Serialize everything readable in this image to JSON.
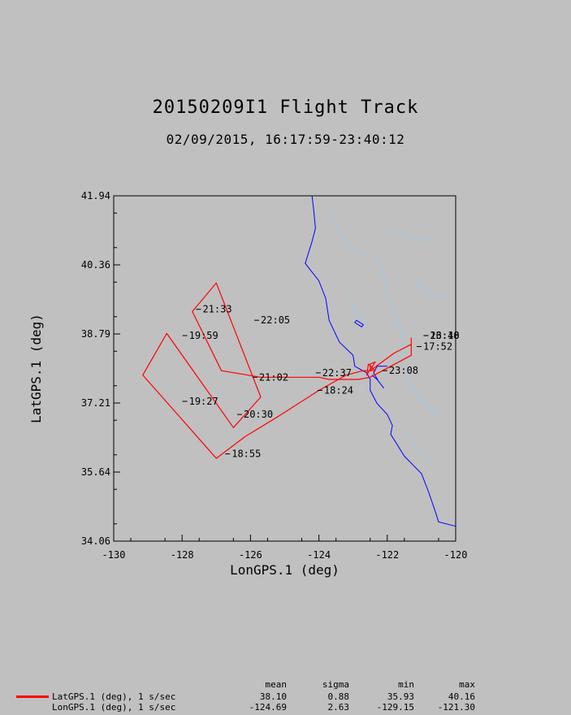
{
  "title": "20150209I1 Flight Track",
  "subtitle": "02/09/2015, 16:17:59-23:40:12",
  "colors": {
    "background": "#c0c0c0",
    "track": "#ff0000",
    "coastline": "#0000ff",
    "rivers": "#99ccee",
    "text": "#000000"
  },
  "chart_data": {
    "type": "line",
    "xlabel": "LonGPS.1 (deg)",
    "ylabel": "LatGPS.1 (deg)",
    "xlim": [
      -130,
      -120
    ],
    "ylim": [
      34.06,
      41.94
    ],
    "xticks": [
      "-130",
      "-128",
      "-126",
      "-124",
      "-122",
      "-120"
    ],
    "yticks": [
      "34.06",
      "35.64",
      "37.21",
      "38.79",
      "40.36",
      "41.94"
    ],
    "grid": false,
    "series": [
      {
        "name": "LatGPS.1 (deg), 1 s/sec",
        "color": "#ff0000",
        "points": [
          [
            -121.3,
            38.7
          ],
          [
            -121.3,
            38.55
          ],
          [
            -121.8,
            38.35
          ],
          [
            -122.15,
            38.15
          ],
          [
            -122.5,
            37.95
          ],
          [
            -122.5,
            38.1
          ],
          [
            -122.35,
            38.15
          ],
          [
            -122.6,
            37.85
          ],
          [
            -122.55,
            38.1
          ],
          [
            -122.35,
            37.95
          ],
          [
            -122.7,
            37.95
          ],
          [
            -123.2,
            37.85
          ],
          [
            -124.0,
            37.5
          ],
          [
            -125.2,
            36.9
          ],
          [
            -126.15,
            36.45
          ],
          [
            -127.0,
            35.95
          ],
          [
            -129.15,
            37.85
          ],
          [
            -128.45,
            38.8
          ],
          [
            -126.5,
            36.65
          ],
          [
            -125.7,
            37.35
          ],
          [
            -127.0,
            39.95
          ],
          [
            -127.7,
            39.3
          ],
          [
            -126.85,
            37.95
          ],
          [
            -125.7,
            37.8
          ],
          [
            -124.0,
            37.8
          ],
          [
            -123.7,
            37.75
          ],
          [
            -122.85,
            37.75
          ],
          [
            -122.5,
            37.8
          ],
          [
            -121.3,
            38.3
          ],
          [
            -121.3,
            38.55
          ]
        ]
      }
    ],
    "annotations": [
      {
        "text": "21:33",
        "lon": -127.4,
        "lat": 39.35
      },
      {
        "text": "22:05",
        "lon": -125.7,
        "lat": 39.1
      },
      {
        "text": "19:59",
        "lon": -127.8,
        "lat": 38.75
      },
      {
        "text": "21:02",
        "lon": -125.75,
        "lat": 37.8
      },
      {
        "text": "22:37",
        "lon": -123.9,
        "lat": 37.9
      },
      {
        "text": "23:08",
        "lon": -121.95,
        "lat": 37.95
      },
      {
        "text": "18:24",
        "lon": -123.85,
        "lat": 37.5
      },
      {
        "text": "19:27",
        "lon": -127.8,
        "lat": 37.25
      },
      {
        "text": "20:30",
        "lon": -126.2,
        "lat": 36.95
      },
      {
        "text": "18:55",
        "lon": -126.55,
        "lat": 36.05
      },
      {
        "text": "17:52",
        "lon": -120.95,
        "lat": 38.5
      },
      {
        "text": "16:18",
        "lon": -120.75,
        "lat": 38.75
      },
      {
        "text": "23:40",
        "lon": -120.75,
        "lat": 38.75
      }
    ]
  },
  "stats": {
    "headers": {
      "mean": "mean",
      "sigma": "sigma",
      "min": "min",
      "max": "max"
    },
    "rows": [
      {
        "label": "LatGPS.1 (deg), 1 s/sec",
        "mean": "38.10",
        "sigma": "0.88",
        "min": "35.93",
        "max": "40.16"
      },
      {
        "label": "LonGPS.1 (deg), 1 s/sec",
        "mean": "-124.69",
        "sigma": "2.63",
        "min": "-129.15",
        "max": "-121.30"
      }
    ]
  }
}
